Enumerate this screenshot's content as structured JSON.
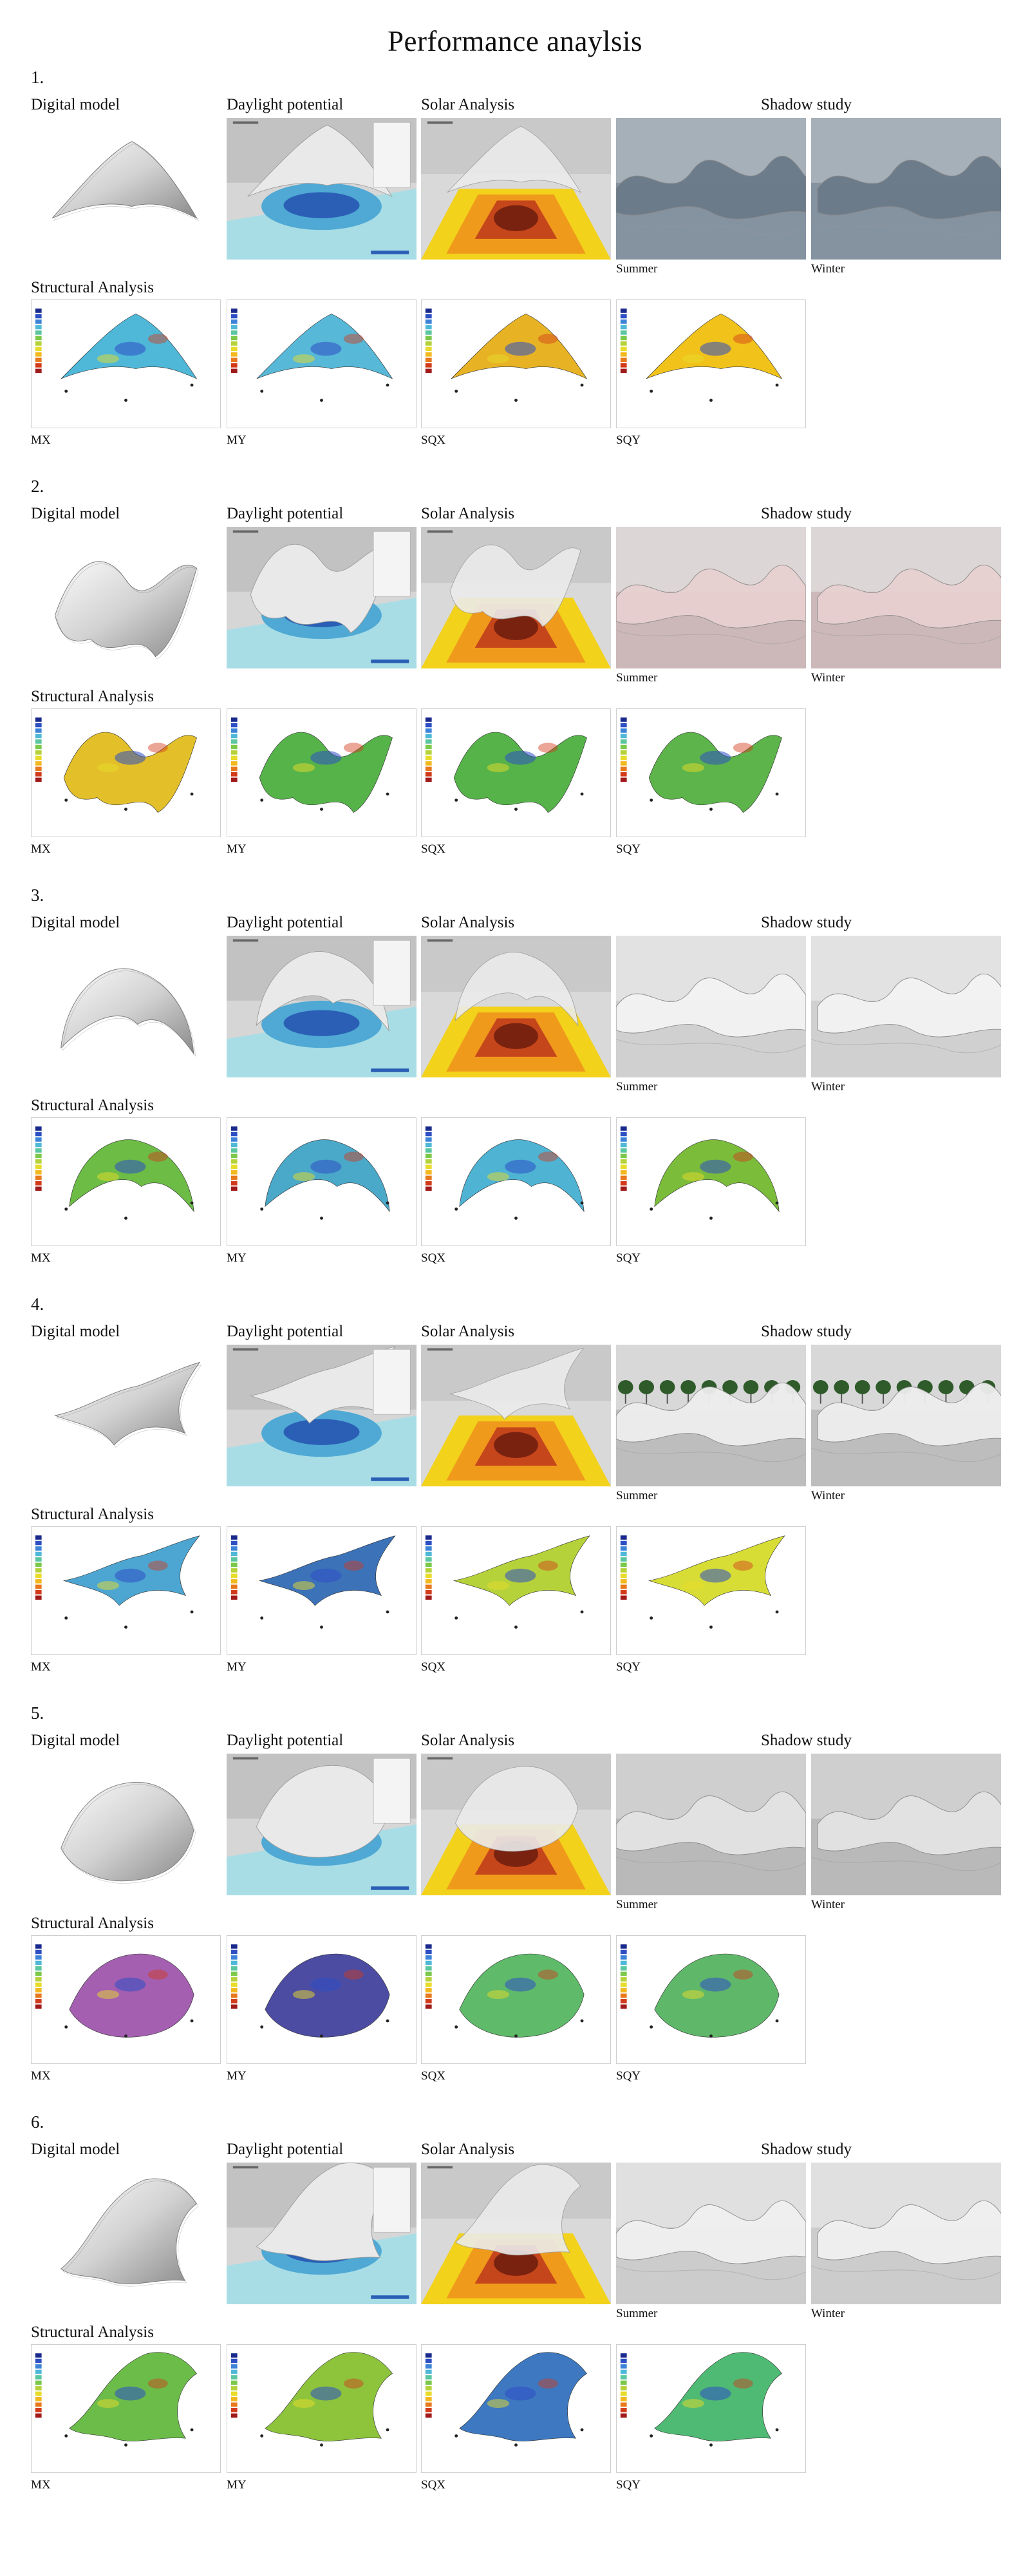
{
  "title": "Performance anaylsis",
  "headers": {
    "digital_model": "Digital model",
    "daylight": "Daylight potential",
    "solar": "Solar Analysis",
    "shadow": "Shadow study",
    "structural": "Structural Analysis"
  },
  "captions": {
    "summer": "Summer",
    "winter": "Winter",
    "mx": "MX",
    "my": "MY",
    "sqx": "SQX",
    "sqy": "SQY"
  },
  "sections": [
    {
      "number": "1.",
      "shadow_tone": "grey-blue",
      "struct_colors": [
        "#4fb8d8",
        "#57b8d8",
        "#e7b325",
        "#f1c21a"
      ]
    },
    {
      "number": "2.",
      "shadow_tone": "pink",
      "struct_colors": [
        "#e3bf2a",
        "#56b34a",
        "#56b34a",
        "#5cb44a"
      ]
    },
    {
      "number": "3.",
      "shadow_tone": "white",
      "struct_colors": [
        "#6cbc45",
        "#4aa8c8",
        "#4fb3d4",
        "#7bbc3b"
      ]
    },
    {
      "number": "4.",
      "shadow_tone": "trees",
      "struct_colors": [
        "#4da6d2",
        "#3c72b8",
        "#b6d23a",
        "#d8dd36"
      ]
    },
    {
      "number": "5.",
      "shadow_tone": "grey",
      "struct_colors": [
        "#a45fb0",
        "#4c4ca2",
        "#5fba6a",
        "#5fb86a"
      ]
    },
    {
      "number": "6.",
      "shadow_tone": "lightgrey",
      "struct_colors": [
        "#6cbc4a",
        "#8dc43c",
        "#3d78c0",
        "#4fba73"
      ]
    }
  ]
}
